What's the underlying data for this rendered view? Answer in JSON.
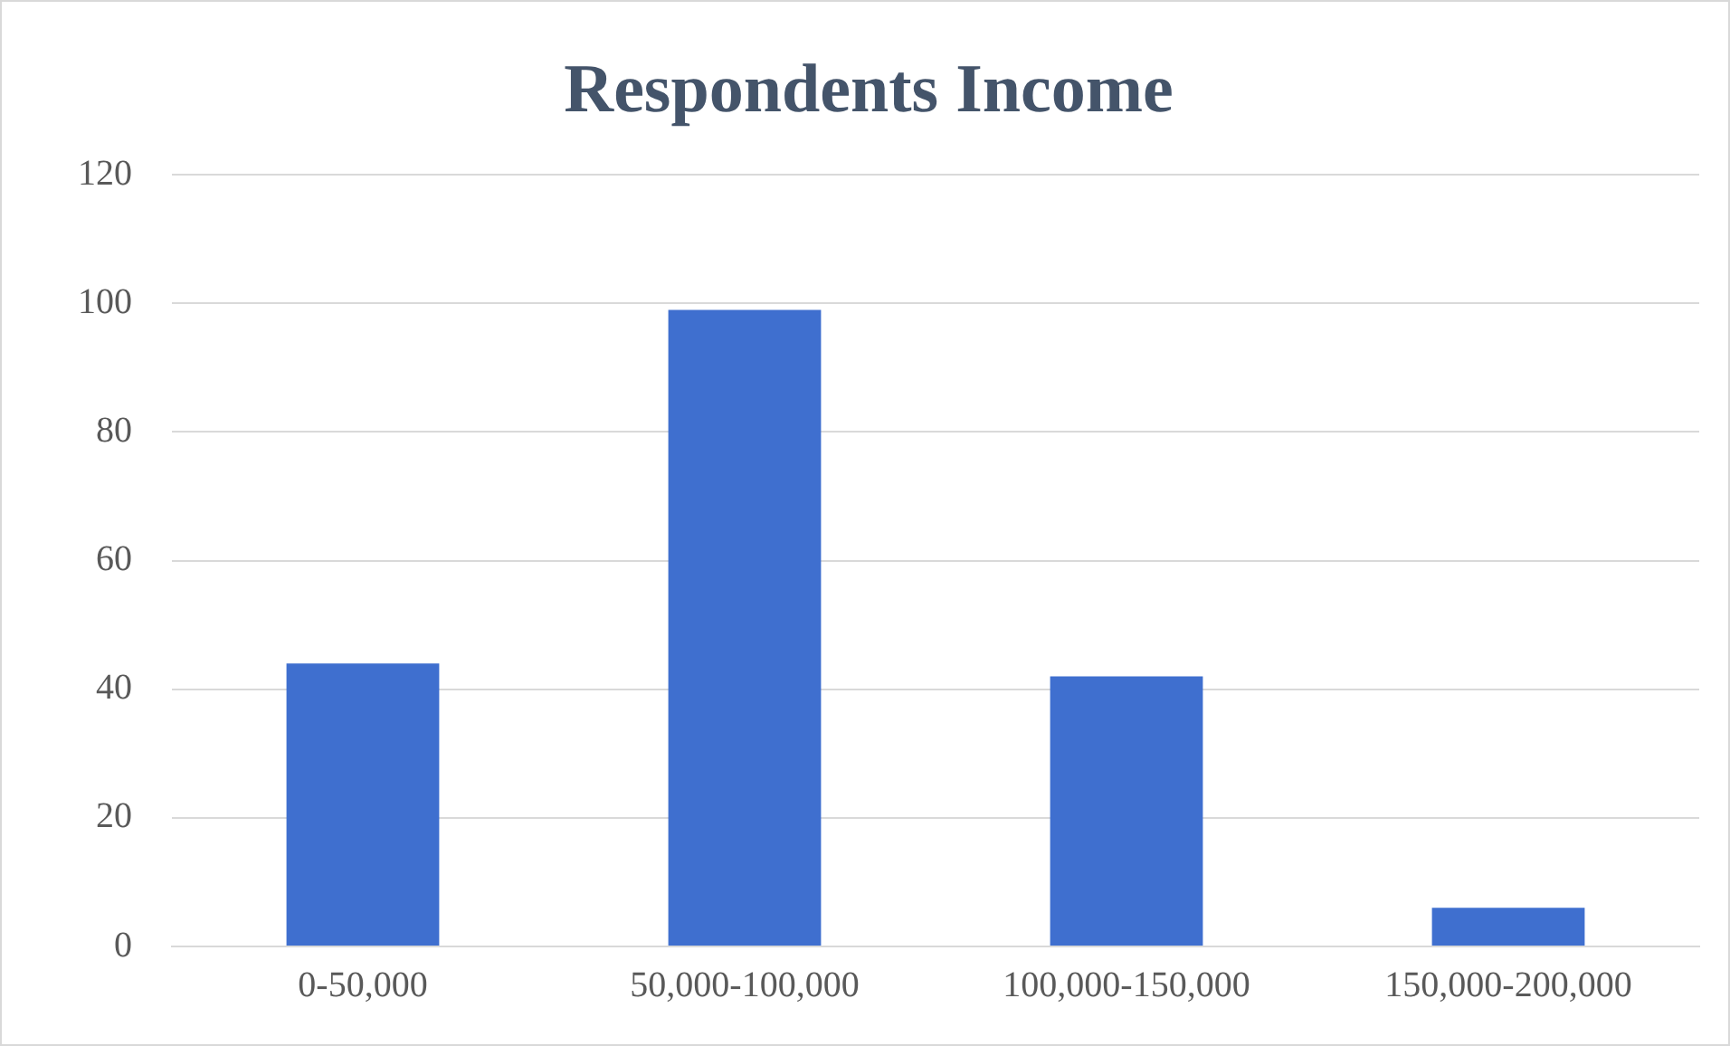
{
  "chart_data": {
    "type": "bar",
    "title": "Respondents Income",
    "categories": [
      "0-50,000",
      "50,000-100,000",
      "100,000-150,000",
      "150,000-200,000"
    ],
    "values": [
      44,
      99,
      42,
      6
    ],
    "color": "#3f6fcf",
    "ylim": [
      0,
      120
    ],
    "yticks": [
      0,
      20,
      40,
      60,
      80,
      100,
      120
    ],
    "grid": "y",
    "legend": false
  }
}
